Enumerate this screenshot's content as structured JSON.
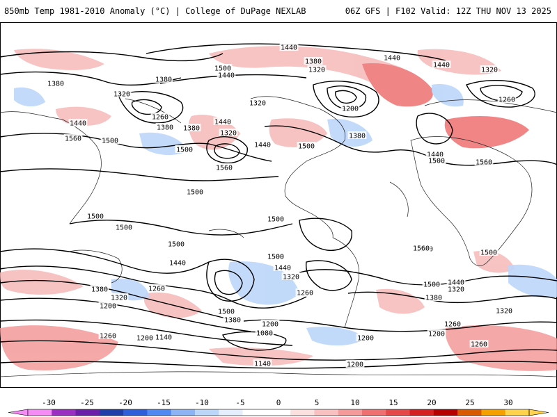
{
  "header": {
    "left": "850mb Temp 1981-2010 Anomaly (°C) | College of DuPage NEXLAB",
    "right": "06Z GFS | F102 Valid: 12Z THU NOV 13 2025"
  },
  "colorbar": {
    "ticks": [
      "-30",
      "-25",
      "-20",
      "-15",
      "-10",
      "-5",
      "0",
      "5",
      "10",
      "15",
      "20",
      "25",
      "30"
    ],
    "colors": [
      "#f58cf5",
      "#9b2fc1",
      "#6b1fa8",
      "#1f3ea8",
      "#2f5fd8",
      "#4f88f0",
      "#8cb4f5",
      "#bcd6fa",
      "#e4eefc",
      "#ffffff",
      "#ffffff",
      "#fbe0e0",
      "#f8c0c0",
      "#f49a9a",
      "#ee7070",
      "#e44848",
      "#d42020",
      "#b40000",
      "#d85a00",
      "#f4a000",
      "#ffd24d"
    ]
  },
  "contour_labels": [
    {
      "text": "1440"
    },
    {
      "text": "1380"
    },
    {
      "text": "1500"
    },
    {
      "text": "1440"
    },
    {
      "text": "1320"
    },
    {
      "text": "1440"
    },
    {
      "text": "1440"
    },
    {
      "text": "1320"
    },
    {
      "text": "1380"
    },
    {
      "text": "1320"
    },
    {
      "text": "1380"
    },
    {
      "text": "1320"
    },
    {
      "text": "1260"
    },
    {
      "text": "1200"
    },
    {
      "text": "1260"
    },
    {
      "text": "1440"
    },
    {
      "text": "1380"
    },
    {
      "text": "1320"
    },
    {
      "text": "1440"
    },
    {
      "text": "1560"
    },
    {
      "text": "1500"
    },
    {
      "text": "1500"
    },
    {
      "text": "1380"
    },
    {
      "text": "1440"
    },
    {
      "text": "1500"
    },
    {
      "text": "1380"
    },
    {
      "text": "1440"
    },
    {
      "text": "1500"
    },
    {
      "text": "1560"
    },
    {
      "text": "1560"
    },
    {
      "text": "1500"
    },
    {
      "text": "1500"
    },
    {
      "text": "1500"
    },
    {
      "text": "1500"
    },
    {
      "text": "1500"
    },
    {
      "text": "1500"
    },
    {
      "text": "1500"
    },
    {
      "text": "1500"
    },
    {
      "text": "1560"
    },
    {
      "text": "1500"
    },
    {
      "text": "1440"
    },
    {
      "text": "1500"
    },
    {
      "text": "1440"
    },
    {
      "text": "1320"
    },
    {
      "text": "1380"
    },
    {
      "text": "1260"
    },
    {
      "text": "1320"
    },
    {
      "text": "1200"
    },
    {
      "text": "1260"
    },
    {
      "text": "1500"
    },
    {
      "text": "1380"
    },
    {
      "text": "1500"
    },
    {
      "text": "1440"
    },
    {
      "text": "1320"
    },
    {
      "text": "1380"
    },
    {
      "text": "1260"
    },
    {
      "text": "1320"
    },
    {
      "text": "1260"
    },
    {
      "text": "1200"
    },
    {
      "text": "1080"
    },
    {
      "text": "1200"
    },
    {
      "text": "1140"
    },
    {
      "text": "1200"
    },
    {
      "text": "1200"
    },
    {
      "text": "1260"
    },
    {
      "text": "1140"
    },
    {
      "text": "1200"
    }
  ]
}
